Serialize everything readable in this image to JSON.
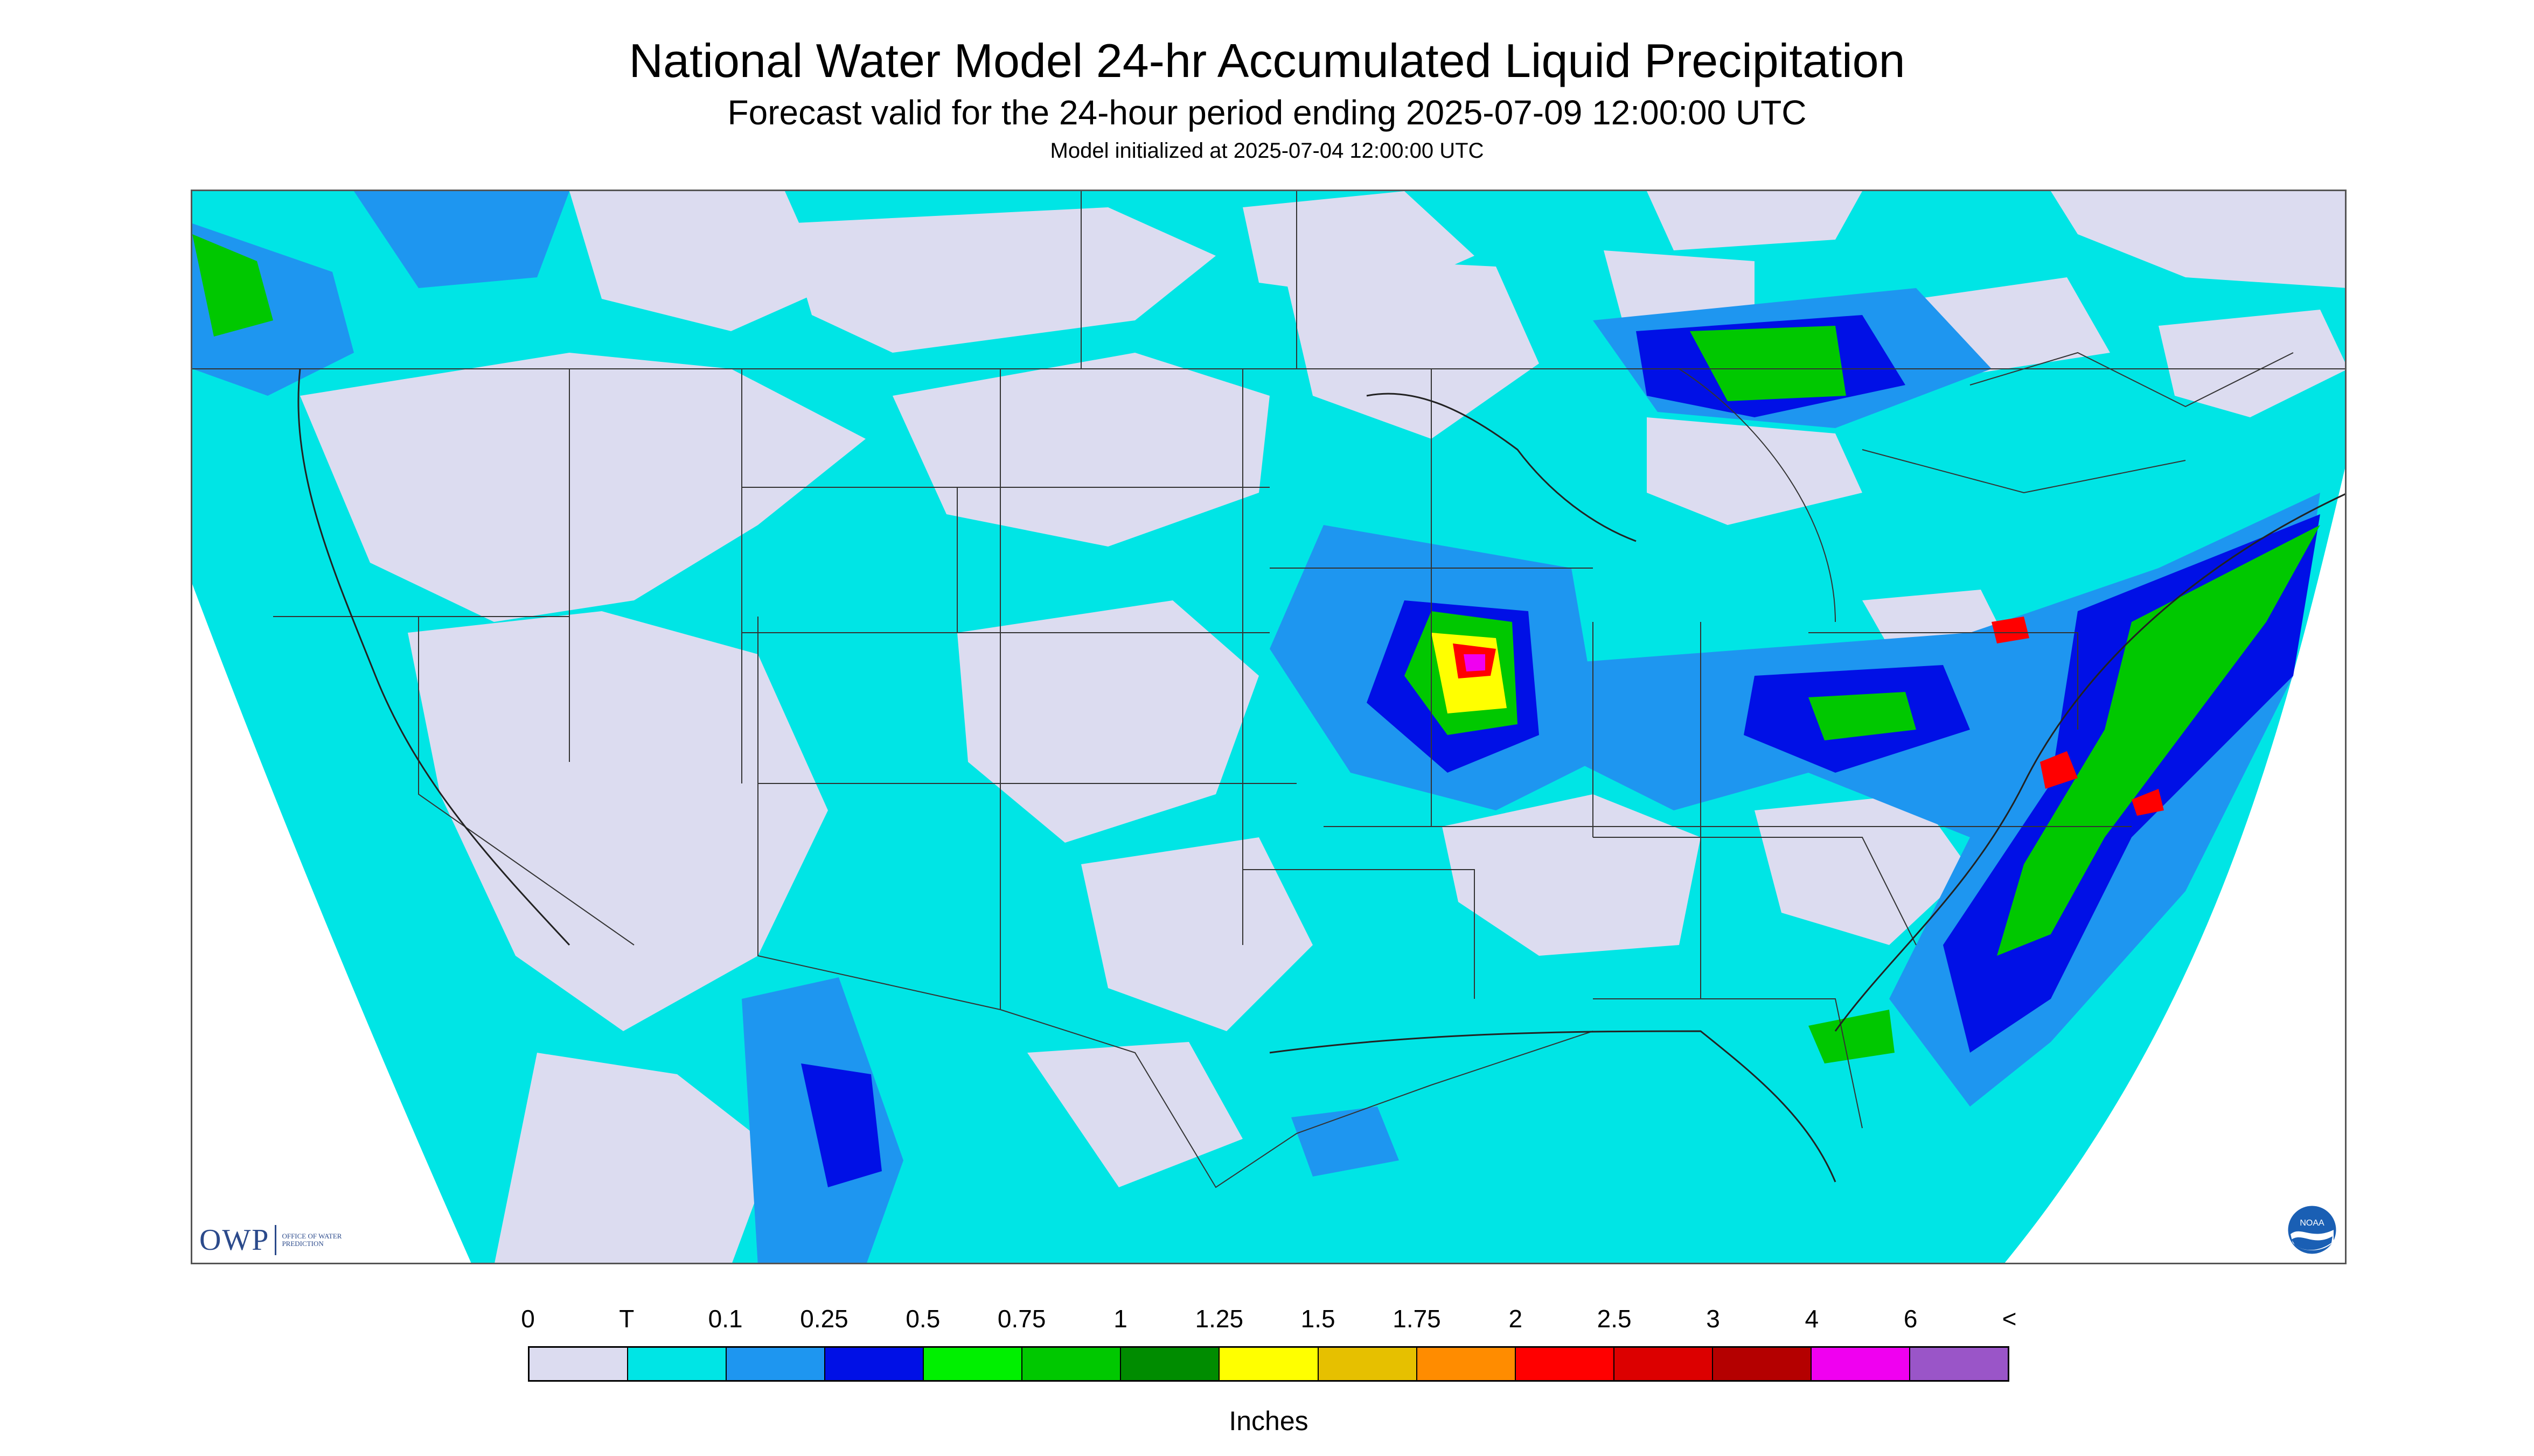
{
  "header": {
    "title": "National Water Model 24-hr Accumulated Liquid Precipitation",
    "subtitle": "Forecast valid for the 24-hour period ending 2025-07-09 12:00:00 UTC",
    "init_line": "Model initialized at 2025-07-04 12:00:00 UTC"
  },
  "legend": {
    "ticks": [
      "0",
      "T",
      "0.1",
      "0.25",
      "0.5",
      "0.75",
      "1",
      "1.25",
      "1.5",
      "1.75",
      "2",
      "2.5",
      "3",
      "4",
      "6",
      "<"
    ],
    "colors": [
      "#dcdcf0",
      "#00e5e5",
      "#1e96f0",
      "#0010e6",
      "#00f000",
      "#00c800",
      "#008c00",
      "#ffff00",
      "#e6c000",
      "#ff8c00",
      "#ff0000",
      "#dc0000",
      "#b40000",
      "#f000f0",
      "#9a55c8"
    ],
    "units": "Inches"
  },
  "logos": {
    "owp_text": "OWP",
    "owp_subtext": "OFFICE OF WATER PREDICTION",
    "noaa_text": "NOAA"
  },
  "map": {
    "colors": {
      "none": "#dcdcf0",
      "trace": "#00e5e5",
      "outside": "#ffffff",
      "borders": "#333333"
    }
  }
}
